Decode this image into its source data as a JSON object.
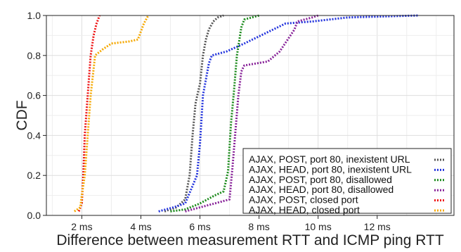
{
  "chart_data": {
    "type": "line",
    "title": "",
    "xlabel": "Difference between measurement RTT and ICMP ping RTT",
    "ylabel": "CDF",
    "xlim": [
      0.8,
      14.6
    ],
    "ylim": [
      0,
      1
    ],
    "x_ticks": [
      {
        "value": 2,
        "label": "2 ms"
      },
      {
        "value": 4,
        "label": "4 ms"
      },
      {
        "value": 6,
        "label": "6 ms"
      },
      {
        "value": 8,
        "label": "8 ms"
      },
      {
        "value": 10,
        "label": "10 ms"
      },
      {
        "value": 12,
        "label": "12 ms"
      }
    ],
    "y_ticks": [
      {
        "value": 0.0,
        "label": "0.0"
      },
      {
        "value": 0.2,
        "label": "0.2"
      },
      {
        "value": 0.4,
        "label": "0.4"
      },
      {
        "value": 0.6,
        "label": "0.6"
      },
      {
        "value": 0.8,
        "label": "0.8"
      },
      {
        "value": 1.0,
        "label": "1.0"
      }
    ],
    "grid": true,
    "legend_position": "bottom-right",
    "series": [
      {
        "name": "AJAX, POST, port 80, inexistent URL",
        "color": "#555555",
        "points": [
          [
            4.8,
            0.02
          ],
          [
            5.2,
            0.04
          ],
          [
            5.5,
            0.08
          ],
          [
            5.65,
            0.2
          ],
          [
            5.75,
            0.4
          ],
          [
            5.85,
            0.56
          ],
          [
            6.0,
            0.66
          ],
          [
            6.1,
            0.8
          ],
          [
            6.2,
            0.88
          ],
          [
            6.3,
            0.93
          ],
          [
            6.45,
            0.97
          ],
          [
            6.6,
            0.99
          ],
          [
            6.8,
            1.0
          ]
        ]
      },
      {
        "name": "AJAX, HEAD, port 80, inexistent URL",
        "color": "#2233dd",
        "points": [
          [
            4.6,
            0.02
          ],
          [
            5.1,
            0.04
          ],
          [
            5.5,
            0.06
          ],
          [
            5.9,
            0.2
          ],
          [
            6.0,
            0.36
          ],
          [
            6.1,
            0.6
          ],
          [
            6.3,
            0.76
          ],
          [
            6.4,
            0.8
          ],
          [
            6.9,
            0.82
          ],
          [
            7.5,
            0.86
          ],
          [
            8.2,
            0.91
          ],
          [
            8.9,
            0.96
          ],
          [
            9.8,
            0.97
          ],
          [
            11.0,
            0.99
          ],
          [
            13.4,
            1.0
          ]
        ]
      },
      {
        "name": "AJAX, POST, port 80, disallowed",
        "color": "#1a8a1a",
        "points": [
          [
            5.0,
            0.02
          ],
          [
            5.5,
            0.03
          ],
          [
            6.0,
            0.06
          ],
          [
            6.5,
            0.1
          ],
          [
            6.8,
            0.12
          ],
          [
            6.95,
            0.22
          ],
          [
            7.05,
            0.46
          ],
          [
            7.15,
            0.62
          ],
          [
            7.25,
            0.8
          ],
          [
            7.4,
            0.94
          ],
          [
            7.5,
            0.98
          ],
          [
            8.0,
            1.0
          ]
        ]
      },
      {
        "name": "AJAX, HEAD, port 80, disallowed",
        "color": "#882299",
        "points": [
          [
            5.5,
            0.02
          ],
          [
            6.0,
            0.04
          ],
          [
            6.5,
            0.06
          ],
          [
            7.0,
            0.08
          ],
          [
            7.1,
            0.24
          ],
          [
            7.2,
            0.42
          ],
          [
            7.3,
            0.6
          ],
          [
            7.4,
            0.72
          ],
          [
            7.5,
            0.75
          ],
          [
            8.3,
            0.77
          ],
          [
            8.7,
            0.82
          ],
          [
            9.2,
            0.93
          ],
          [
            9.3,
            0.97
          ],
          [
            9.8,
            0.99
          ],
          [
            10.0,
            1.0
          ]
        ]
      },
      {
        "name": "AJAX, POST, closed port",
        "color": "#ee1111",
        "points": [
          [
            1.9,
            0.02
          ],
          [
            2.0,
            0.06
          ],
          [
            2.05,
            0.2
          ],
          [
            2.1,
            0.4
          ],
          [
            2.2,
            0.6
          ],
          [
            2.3,
            0.8
          ],
          [
            2.4,
            0.9
          ],
          [
            2.5,
            0.96
          ],
          [
            2.6,
            1.0
          ]
        ]
      },
      {
        "name": "AJAX, HEAD, closed port",
        "color": "#f5a800",
        "points": [
          [
            1.75,
            0.02
          ],
          [
            1.95,
            0.04
          ],
          [
            2.0,
            0.1
          ],
          [
            2.1,
            0.2
          ],
          [
            2.2,
            0.4
          ],
          [
            2.3,
            0.6
          ],
          [
            2.45,
            0.8
          ],
          [
            2.7,
            0.83
          ],
          [
            3.0,
            0.86
          ],
          [
            3.6,
            0.87
          ],
          [
            3.9,
            0.88
          ],
          [
            4.0,
            0.92
          ],
          [
            4.1,
            0.96
          ],
          [
            4.25,
            1.0
          ]
        ]
      }
    ]
  }
}
